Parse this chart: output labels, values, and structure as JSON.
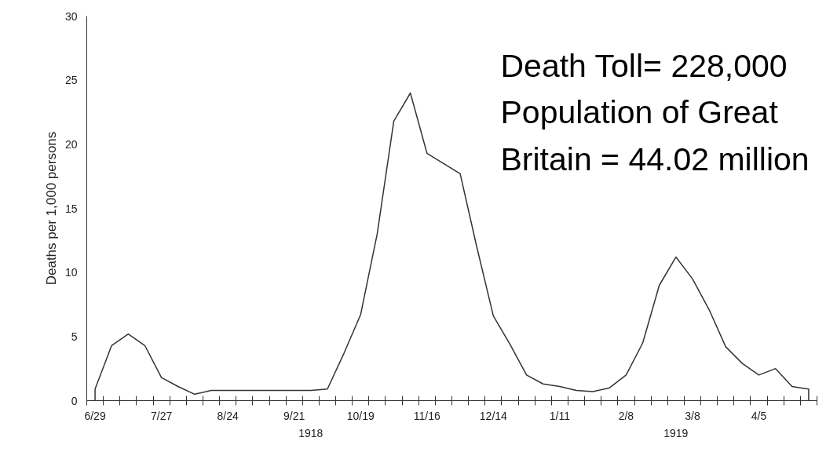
{
  "chart_data": {
    "type": "line",
    "ylabel": "Deaths per 1,000 persons",
    "x": [
      "1918-06-29",
      "1918-06-29",
      "1918-07-06",
      "1918-07-13",
      "1918-07-20",
      "1918-07-27",
      "1918-08-03",
      "1918-08-10",
      "1918-08-17",
      "1918-08-24",
      "1918-08-31",
      "1918-09-07",
      "1918-09-14",
      "1918-09-21",
      "1918-09-28",
      "1918-10-05",
      "1918-10-12",
      "1918-10-19",
      "1918-10-26",
      "1918-11-02",
      "1918-11-09",
      "1918-11-16",
      "1918-11-23",
      "1918-11-30",
      "1918-12-07",
      "1918-12-14",
      "1918-12-21",
      "1918-12-28",
      "1919-01-04",
      "1919-01-11",
      "1919-01-18",
      "1919-01-25",
      "1919-02-01",
      "1919-02-08",
      "1919-02-15",
      "1919-02-22",
      "1919-03-01",
      "1919-03-08",
      "1919-03-15",
      "1919-03-22",
      "1919-03-29",
      "1919-04-05",
      "1919-04-12",
      "1919-04-19",
      "1919-04-26",
      "1919-04-26"
    ],
    "series": [
      {
        "color": "#333333",
        "values": [
          0,
          0.9,
          4.3,
          5.2,
          4.3,
          1.8,
          1.1,
          0.5,
          0.8,
          0.8,
          0.8,
          0.8,
          0.8,
          0.8,
          0.8,
          0.9,
          3.7,
          6.7,
          13.0,
          21.8,
          24.0,
          19.3,
          18.5,
          17.7,
          12.0,
          6.6,
          4.4,
          2.0,
          1.3,
          1.1,
          0.8,
          0.7,
          1.0,
          2.0,
          4.5,
          9.0,
          11.2,
          9.5,
          7.1,
          4.2,
          2.9,
          2.0,
          2.5,
          1.1,
          0.9,
          0
        ]
      }
    ],
    "xlim": [
      "1918-06-25T12:00",
      "1919-04-29T12:00"
    ],
    "xticks": [
      {
        "value": "1918-06-29",
        "label": "6/29"
      },
      {
        "value": "1918-07-27",
        "label": "7/27"
      },
      {
        "value": "1918-08-24",
        "label": "8/24"
      },
      {
        "value": "1918-09-21",
        "label": "9/21"
      },
      {
        "value": "1918-10-19",
        "label": "10/19"
      },
      {
        "value": "1918-11-16",
        "label": "11/16"
      },
      {
        "value": "1918-12-14",
        "label": "12/14"
      },
      {
        "value": "1919-01-11",
        "label": "1/11"
      },
      {
        "value": "1919-02-08",
        "label": "2/8"
      },
      {
        "value": "1919-03-08",
        "label": "3/8"
      },
      {
        "value": "1919-04-05",
        "label": "4/5"
      },
      {
        "value": "1918-06-25T12:00",
        "label": null
      },
      {
        "value": "1918-07-02T12:00",
        "label": null
      },
      {
        "value": "1918-07-09T12:00",
        "label": null
      },
      {
        "value": "1918-07-16T12:00",
        "label": null
      },
      {
        "value": "1918-07-23T12:00",
        "label": null
      },
      {
        "value": "1918-07-30T12:00",
        "label": null
      },
      {
        "value": "1918-08-06T12:00",
        "label": null
      },
      {
        "value": "1918-08-13T12:00",
        "label": null
      },
      {
        "value": "1918-08-20T12:00",
        "label": null
      },
      {
        "value": "1918-08-27T12:00",
        "label": null
      },
      {
        "value": "1918-09-03T12:00",
        "label": null
      },
      {
        "value": "1918-09-10T12:00",
        "label": null
      },
      {
        "value": "1918-09-17T12:00",
        "label": null
      },
      {
        "value": "1918-09-24T12:00",
        "label": null
      },
      {
        "value": "1918-10-01T12:00",
        "label": null
      },
      {
        "value": "1918-10-08T12:00",
        "label": null
      },
      {
        "value": "1918-10-15T12:00",
        "label": null
      },
      {
        "value": "1918-10-22T12:00",
        "label": null
      },
      {
        "value": "1918-10-29T12:00",
        "label": null
      },
      {
        "value": "1918-11-05T12:00",
        "label": null
      },
      {
        "value": "1918-11-12T12:00",
        "label": null
      },
      {
        "value": "1918-11-19T12:00",
        "label": null
      },
      {
        "value": "1918-11-26T12:00",
        "label": null
      },
      {
        "value": "1918-12-03T12:00",
        "label": null
      },
      {
        "value": "1918-12-10T12:00",
        "label": null
      },
      {
        "value": "1918-12-17T12:00",
        "label": null
      },
      {
        "value": "1918-12-24T12:00",
        "label": null
      },
      {
        "value": "1918-12-31T12:00",
        "label": null
      },
      {
        "value": "1919-01-07T12:00",
        "label": null
      },
      {
        "value": "1919-01-14T12:00",
        "label": null
      },
      {
        "value": "1919-01-21T12:00",
        "label": null
      },
      {
        "value": "1919-01-28T12:00",
        "label": null
      },
      {
        "value": "1919-02-04T12:00",
        "label": null
      },
      {
        "value": "1919-02-11T12:00",
        "label": null
      },
      {
        "value": "1919-02-18T12:00",
        "label": null
      },
      {
        "value": "1919-02-25T12:00",
        "label": null
      },
      {
        "value": "1919-03-04T12:00",
        "label": null
      },
      {
        "value": "1919-03-11T12:00",
        "label": null
      },
      {
        "value": "1919-03-18T12:00",
        "label": null
      },
      {
        "value": "1919-03-25T12:00",
        "label": null
      },
      {
        "value": "1919-04-01T12:00",
        "label": null
      },
      {
        "value": "1919-04-08T12:00",
        "label": null
      },
      {
        "value": "1919-04-15T12:00",
        "label": null
      },
      {
        "value": "1919-04-22T12:00",
        "label": null
      },
      {
        "value": "1919-04-29T12:00",
        "label": null
      }
    ],
    "ylim": [
      0,
      30
    ],
    "yticks": [
      0,
      5,
      10,
      15,
      20,
      25,
      30
    ],
    "grid": false,
    "marker": "none",
    "line_style": "solid",
    "annotations": [
      "Death Toll= 228,000\nPopulation of Great\nBritain = 44.02 million",
      "1918",
      "1919"
    ]
  }
}
